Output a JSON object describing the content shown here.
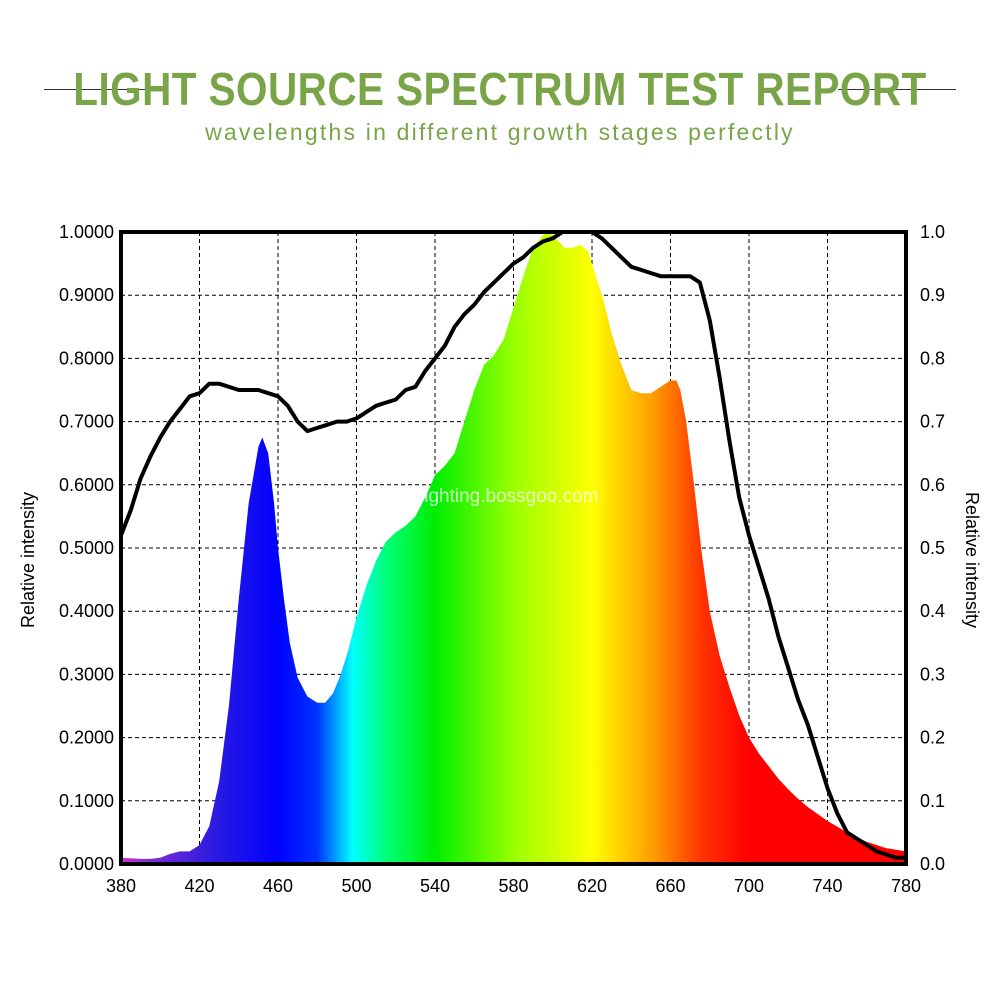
{
  "header": {
    "title": "LIGHT SOURCE SPECTRUM TEST REPORT",
    "subtitle": "wavelengths in different growth stages perfectly"
  },
  "watermark": "lighting.bossgoo.com",
  "chart_data": {
    "type": "area",
    "x_ticks": [
      "380",
      "420",
      "460",
      "500",
      "540",
      "580",
      "620",
      "660",
      "700",
      "740",
      "780"
    ],
    "y_left_ticks": [
      "0.0000",
      "0.1000",
      "0.2000",
      "0.3000",
      "0.4000",
      "0.5000",
      "0.6000",
      "0.7000",
      "0.8000",
      "0.9000",
      "1.0000"
    ],
    "y_right_ticks": [
      "0.0",
      "0.1",
      "0.2",
      "0.3",
      "0.4",
      "0.5",
      "0.6",
      "0.7",
      "0.8",
      "0.9",
      "1.0"
    ],
    "xlabel": "",
    "ylabel_left": "Relative intensity",
    "ylabel_right": "Relative intensity",
    "xlim": [
      380,
      780
    ],
    "ylim": [
      0,
      1
    ],
    "grid": true,
    "series": [
      {
        "fill": "spectral-gradient",
        "x": [
          380,
          385,
          390,
          395,
          400,
          405,
          410,
          415,
          420,
          425,
          430,
          435,
          440,
          445,
          450,
          452,
          455,
          458,
          460,
          463,
          466,
          470,
          475,
          480,
          484,
          488,
          492,
          496,
          500,
          505,
          510,
          515,
          520,
          525,
          530,
          535,
          540,
          545,
          550,
          555,
          560,
          565,
          570,
          575,
          580,
          585,
          590,
          595,
          598,
          600,
          603,
          606,
          610,
          614,
          618,
          622,
          626,
          630,
          635,
          640,
          645,
          650,
          655,
          660,
          663,
          665,
          668,
          672,
          676,
          680,
          685,
          690,
          695,
          700,
          705,
          710,
          715,
          720,
          725,
          730,
          740,
          750,
          760,
          770,
          780
        ],
        "values": [
          0.01,
          0.009,
          0.008,
          0.008,
          0.01,
          0.016,
          0.02,
          0.02,
          0.03,
          0.06,
          0.13,
          0.25,
          0.42,
          0.57,
          0.66,
          0.675,
          0.65,
          0.57,
          0.5,
          0.42,
          0.35,
          0.295,
          0.265,
          0.255,
          0.255,
          0.27,
          0.3,
          0.34,
          0.39,
          0.44,
          0.48,
          0.51,
          0.525,
          0.535,
          0.55,
          0.58,
          0.615,
          0.63,
          0.65,
          0.7,
          0.75,
          0.79,
          0.805,
          0.83,
          0.88,
          0.93,
          0.975,
          0.995,
          1.0,
          0.995,
          0.985,
          0.975,
          0.975,
          0.98,
          0.97,
          0.93,
          0.89,
          0.84,
          0.79,
          0.75,
          0.745,
          0.745,
          0.755,
          0.765,
          0.765,
          0.75,
          0.7,
          0.6,
          0.49,
          0.4,
          0.33,
          0.28,
          0.235,
          0.2,
          0.175,
          0.155,
          0.135,
          0.118,
          0.103,
          0.09,
          0.068,
          0.05,
          0.035,
          0.025,
          0.02
        ]
      },
      {
        "line": "black",
        "x": [
          380,
          385,
          390,
          395,
          400,
          405,
          410,
          415,
          420,
          425,
          430,
          440,
          445,
          450,
          460,
          465,
          470,
          475,
          480,
          485,
          490,
          495,
          500,
          505,
          510,
          515,
          520,
          525,
          530,
          535,
          540,
          545,
          550,
          555,
          560,
          565,
          570,
          575,
          580,
          585,
          590,
          595,
          600,
          605,
          610,
          615,
          620,
          625,
          630,
          635,
          640,
          645,
          650,
          655,
          660,
          665,
          670,
          675,
          680,
          685,
          690,
          695,
          700,
          705,
          710,
          715,
          720,
          725,
          730,
          735,
          740,
          745,
          750,
          755,
          760,
          765,
          770,
          775,
          780
        ],
        "values": [
          0.52,
          0.56,
          0.61,
          0.645,
          0.675,
          0.7,
          0.72,
          0.74,
          0.745,
          0.76,
          0.76,
          0.75,
          0.75,
          0.75,
          0.74,
          0.725,
          0.7,
          0.685,
          0.69,
          0.695,
          0.7,
          0.7,
          0.705,
          0.715,
          0.725,
          0.73,
          0.735,
          0.75,
          0.755,
          0.78,
          0.8,
          0.82,
          0.85,
          0.87,
          0.885,
          0.905,
          0.92,
          0.935,
          0.95,
          0.96,
          0.975,
          0.985,
          0.99,
          1.0,
          1.0,
          1.0,
          1.0,
          0.99,
          0.975,
          0.96,
          0.945,
          0.94,
          0.935,
          0.93,
          0.93,
          0.93,
          0.93,
          0.92,
          0.86,
          0.77,
          0.67,
          0.58,
          0.52,
          0.47,
          0.42,
          0.36,
          0.31,
          0.26,
          0.22,
          0.17,
          0.12,
          0.08,
          0.05,
          0.04,
          0.03,
          0.02,
          0.015,
          0.01,
          0.01
        ]
      }
    ]
  }
}
